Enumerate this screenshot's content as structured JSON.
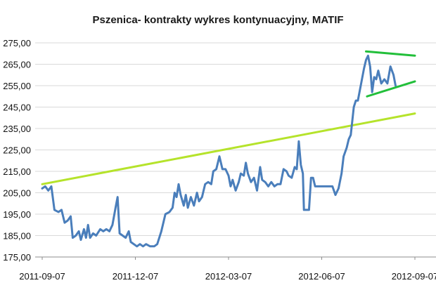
{
  "chart_data": {
    "type": "line",
    "title": "Pszenica- kontrakty wykres kontynuacyjny, MATIF",
    "xlabel": "",
    "ylabel": "",
    "x_tick_labels": [
      "2011-09-07",
      "2011-12-07",
      "2012-03-07",
      "2012-06-07",
      "2012-09-07"
    ],
    "y_tick_labels": [
      "175,00",
      "185,00",
      "195,00",
      "205,00",
      "215,00",
      "225,00",
      "235,00",
      "245,00",
      "255,00",
      "265,00",
      "275,00"
    ],
    "ylim": [
      175,
      275
    ],
    "xlim": [
      "2011-09-07",
      "2012-09-07"
    ],
    "grid": true,
    "colors": {
      "price": "#4a7ebb",
      "trend": "#b5e32b",
      "triangle": "#22bf3a"
    },
    "series": [
      {
        "values": [
          [
            "2011-09-07",
            207
          ],
          [
            "2011-09-10",
            208
          ],
          [
            "2011-09-13",
            206
          ],
          [
            "2011-09-16",
            208
          ],
          [
            "2011-09-19",
            197
          ],
          [
            "2011-09-23",
            196
          ],
          [
            "2011-09-26",
            197
          ],
          [
            "2011-09-29",
            191
          ],
          [
            "2011-10-02",
            192
          ],
          [
            "2011-10-05",
            194
          ],
          [
            "2011-10-07",
            184
          ],
          [
            "2011-10-10",
            185
          ],
          [
            "2011-10-13",
            187
          ],
          [
            "2011-10-15",
            183
          ],
          [
            "2011-10-18",
            188
          ],
          [
            "2011-10-20",
            184
          ],
          [
            "2011-10-22",
            190
          ],
          [
            "2011-10-24",
            184
          ],
          [
            "2011-10-27",
            186
          ],
          [
            "2011-10-30",
            185
          ],
          [
            "2011-11-03",
            188
          ],
          [
            "2011-11-06",
            187
          ],
          [
            "2011-11-09",
            188
          ],
          [
            "2011-11-12",
            187
          ],
          [
            "2011-11-15",
            190
          ],
          [
            "2011-11-18",
            198
          ],
          [
            "2011-11-20",
            203
          ],
          [
            "2011-11-22",
            186
          ],
          [
            "2011-11-25",
            185
          ],
          [
            "2011-11-28",
            184
          ],
          [
            "2011-12-01",
            187
          ],
          [
            "2011-12-03",
            182
          ],
          [
            "2011-12-06",
            181
          ],
          [
            "2011-12-09",
            180
          ],
          [
            "2011-12-12",
            181
          ],
          [
            "2011-12-15",
            180
          ],
          [
            "2011-12-18",
            181
          ],
          [
            "2011-12-22",
            180
          ],
          [
            "2011-12-26",
            180
          ],
          [
            "2011-12-29",
            181
          ],
          [
            "2012-01-02",
            187
          ],
          [
            "2012-01-06",
            195
          ],
          [
            "2012-01-10",
            196
          ],
          [
            "2012-01-13",
            198
          ],
          [
            "2012-01-15",
            205
          ],
          [
            "2012-01-17",
            203
          ],
          [
            "2012-01-19",
            209
          ],
          [
            "2012-01-21",
            204
          ],
          [
            "2012-01-24",
            199
          ],
          [
            "2012-01-26",
            204
          ],
          [
            "2012-01-28",
            198
          ],
          [
            "2012-01-31",
            203
          ],
          [
            "2012-02-03",
            199
          ],
          [
            "2012-02-06",
            205
          ],
          [
            "2012-02-08",
            201
          ],
          [
            "2012-02-11",
            203
          ],
          [
            "2012-02-14",
            209
          ],
          [
            "2012-02-17",
            210
          ],
          [
            "2012-02-20",
            209
          ],
          [
            "2012-02-22",
            215
          ],
          [
            "2012-02-25",
            216
          ],
          [
            "2012-02-28",
            222
          ],
          [
            "2012-03-02",
            216
          ],
          [
            "2012-03-05",
            216
          ],
          [
            "2012-03-08",
            213
          ],
          [
            "2012-03-10",
            208
          ],
          [
            "2012-03-12",
            211
          ],
          [
            "2012-03-15",
            206
          ],
          [
            "2012-03-18",
            210
          ],
          [
            "2012-03-20",
            214
          ],
          [
            "2012-03-23",
            213
          ],
          [
            "2012-03-25",
            219
          ],
          [
            "2012-03-27",
            214
          ],
          [
            "2012-03-30",
            210
          ],
          [
            "2012-04-02",
            212
          ],
          [
            "2012-04-05",
            206
          ],
          [
            "2012-04-08",
            217
          ],
          [
            "2012-04-10",
            211
          ],
          [
            "2012-04-13",
            210
          ],
          [
            "2012-04-16",
            208
          ],
          [
            "2012-04-19",
            210
          ],
          [
            "2012-04-22",
            208
          ],
          [
            "2012-04-25",
            209
          ],
          [
            "2012-04-28",
            209
          ],
          [
            "2012-05-01",
            216
          ],
          [
            "2012-05-04",
            215
          ],
          [
            "2012-05-06",
            213
          ],
          [
            "2012-05-09",
            212
          ],
          [
            "2012-05-12",
            217
          ],
          [
            "2012-05-14",
            216
          ],
          [
            "2012-05-16",
            229
          ],
          [
            "2012-05-18",
            218
          ],
          [
            "2012-05-20",
            214
          ],
          [
            "2012-05-21",
            197
          ],
          [
            "2012-05-26",
            197
          ],
          [
            "2012-05-28",
            212
          ],
          [
            "2012-05-30",
            212
          ],
          [
            "2012-06-01",
            208
          ],
          [
            "2012-06-12",
            208
          ],
          [
            "2012-06-18",
            208
          ],
          [
            "2012-06-21",
            204
          ],
          [
            "2012-06-24",
            207
          ],
          [
            "2012-06-27",
            214
          ],
          [
            "2012-06-29",
            222
          ],
          [
            "2012-07-02",
            226
          ],
          [
            "2012-07-04",
            230
          ],
          [
            "2012-07-06",
            232
          ],
          [
            "2012-07-09",
            245
          ],
          [
            "2012-07-11",
            248
          ],
          [
            "2012-07-13",
            248
          ],
          [
            "2012-07-17",
            258
          ],
          [
            "2012-07-19",
            263
          ],
          [
            "2012-07-21",
            267
          ],
          [
            "2012-07-23",
            269
          ],
          [
            "2012-07-25",
            264
          ],
          [
            "2012-07-27",
            252
          ],
          [
            "2012-07-29",
            259
          ],
          [
            "2012-07-31",
            258
          ],
          [
            "2012-08-02",
            262
          ],
          [
            "2012-08-05",
            256
          ],
          [
            "2012-08-08",
            258
          ],
          [
            "2012-08-11",
            256
          ],
          [
            "2012-08-14",
            264
          ],
          [
            "2012-08-17",
            260
          ],
          [
            "2012-08-19",
            255
          ]
        ]
      }
    ],
    "trendlines": [
      {
        "points": [
          [
            "2011-09-07",
            209
          ],
          [
            "2012-09-07",
            242
          ]
        ]
      }
    ],
    "triangle": {
      "upper": [
        [
          "2012-07-21",
          271
        ],
        [
          "2012-09-07",
          269
        ]
      ],
      "lower": [
        [
          "2012-07-22",
          250
        ],
        [
          "2012-09-07",
          257
        ]
      ]
    }
  }
}
